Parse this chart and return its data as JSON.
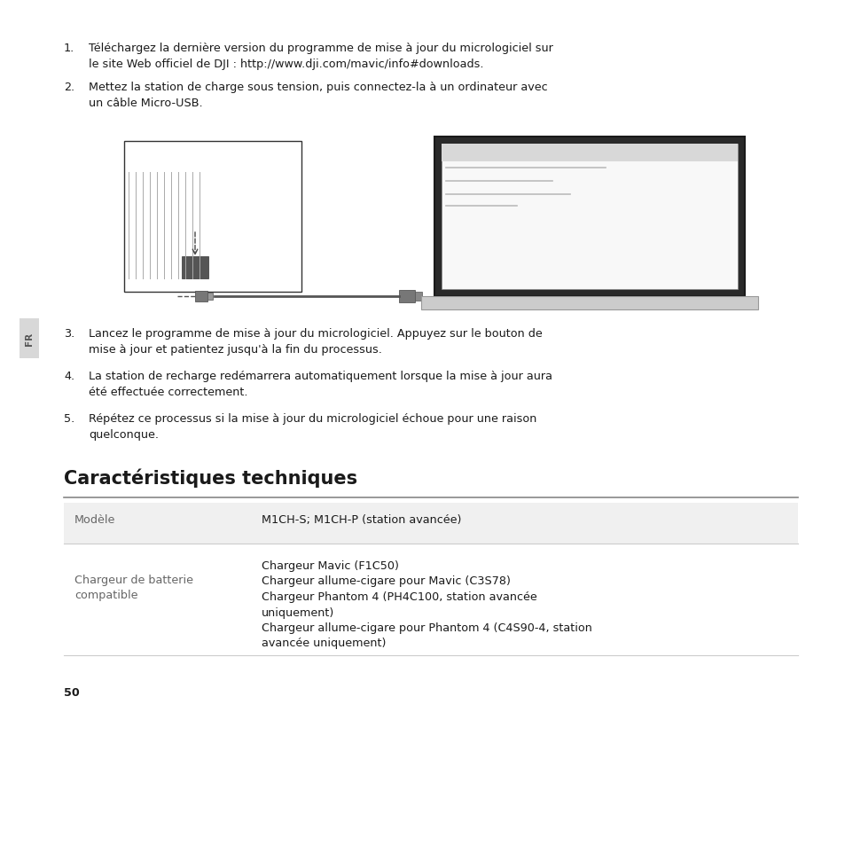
{
  "background_color": "#ffffff",
  "text_color": "#1a1a1a",
  "gray_text": "#666666",
  "title": "Caractéristiques techniques",
  "title_fontsize": 15,
  "body_fontsize": 9.2,
  "small_fontsize": 8.5,
  "sidebar_text": "FR",
  "page_number": "50",
  "item1_line1": "Téléchargez la dernière version du programme de mise à jour du micrologiciel sur",
  "item1_line2": "le site Web officiel de DJI : http://www.dji.com/mavic/info#downloads.",
  "item2_line1": "Mettez la station de charge sous tension, puis connectez-la à un ordinateur avec",
  "item2_line2": "un câble Micro-USB.",
  "item3_line1": "Lancez le programme de mise à jour du micrologiciel. Appuyez sur le bouton de",
  "item3_line2": "mise à jour et patientez jusqu'à la fin du processus.",
  "item4_line1": "La station de recharge redémarrera automatiquement lorsque la mise à jour aura",
  "item4_line2": "été effectuée correctement.",
  "item5_line1": "Répétez ce processus si la mise à jour du micrologiciel échoue pour une raison",
  "item5_line2": "quelconque.",
  "table_row1_col1": "Modèle",
  "table_row1_col2": "M1CH-S; M1CH-P (station avancée)",
  "table_row2_col1_line1": "Chargeur de batterie",
  "table_row2_col1_line2": "compatible",
  "charger_lines": [
    "Chargeur Mavic (F1C50)",
    "Chargeur allume-cigare pour Mavic (C3S78)",
    "Chargeur Phantom 4 (PH4C100, station avancée",
    "uniquement)",
    "Chargeur allume-cigare pour Phantom 4 (C4S90-4, station",
    "avancée uniquement)"
  ],
  "table_bg": "#f0f0f0",
  "table_line_color": "#cccccc",
  "title_line_color": "#888888"
}
